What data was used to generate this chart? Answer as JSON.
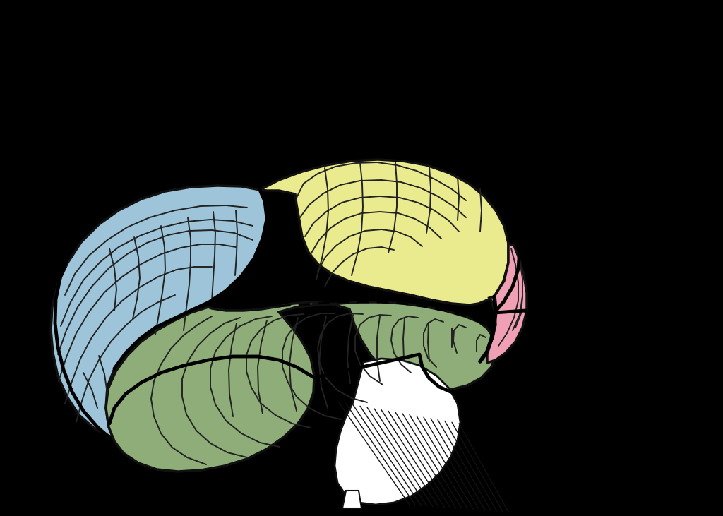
{
  "background_color": "#000000",
  "frontal_color": "#9DC4D8",
  "parietal_color": "#EAEA8E",
  "occipital_color": "#8FAD78",
  "temporal_color": "#F0A0B5",
  "cerebellum_color": "#FFFFFF",
  "outline_color": "#111111",
  "gyri_color": "#222222",
  "fig_width": 10.24,
  "fig_height": 7.31,
  "dpi": 100
}
